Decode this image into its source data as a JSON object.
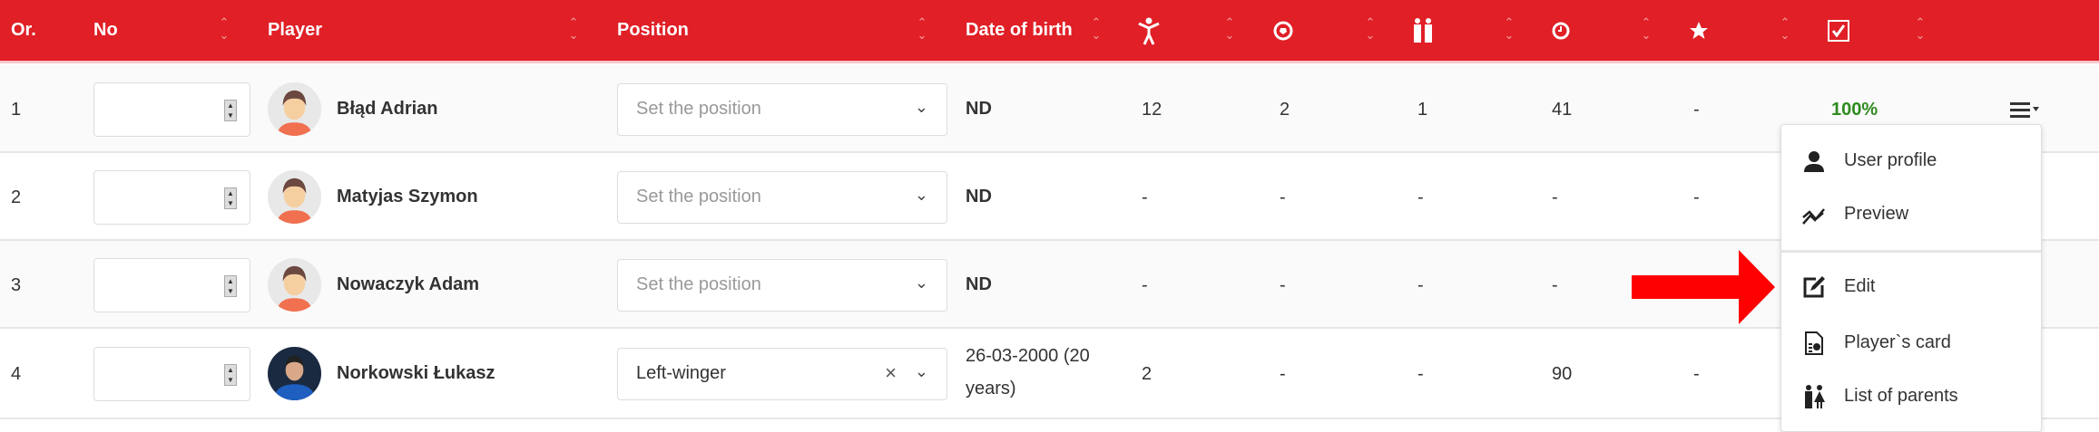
{
  "header": {
    "columns": [
      "Or.",
      "No",
      "Player",
      "Position",
      "Date of birth"
    ],
    "icon_columns": [
      "person-icon",
      "ball-icon",
      "players-icon",
      "clock-icon",
      "star-icon",
      "checkbox-icon"
    ]
  },
  "rows": [
    {
      "order": "1",
      "name": "Błąd Adrian",
      "position": "Set the position",
      "position_set": false,
      "dob": "ND",
      "stats": [
        "12",
        "2",
        "1",
        "41",
        "-"
      ],
      "percent": "100%"
    },
    {
      "order": "2",
      "name": "Matyjas Szymon",
      "position": "Set the position",
      "position_set": false,
      "dob": "ND",
      "stats": [
        "-",
        "-",
        "-",
        "-",
        "-"
      ],
      "percent": ""
    },
    {
      "order": "3",
      "name": "Nowaczyk Adam",
      "position": "Set the position",
      "position_set": false,
      "dob": "ND",
      "stats": [
        "-",
        "-",
        "-",
        "-",
        ""
      ],
      "percent": ""
    },
    {
      "order": "4",
      "name": "Norkowski Łukasz",
      "position": "Left-winger",
      "position_set": true,
      "dob_line1": "26-03-2000 (20",
      "dob_line2": "years)",
      "stats": [
        "2",
        "-",
        "-",
        "90",
        "-"
      ],
      "percent": ""
    }
  ],
  "menu": {
    "items": [
      "User profile",
      "Preview",
      "Edit",
      "Player`s card",
      "List of parents"
    ]
  },
  "colors": {
    "header": "#e01f26",
    "percent": "#2e8b1f",
    "arrow": "#ff0000"
  }
}
